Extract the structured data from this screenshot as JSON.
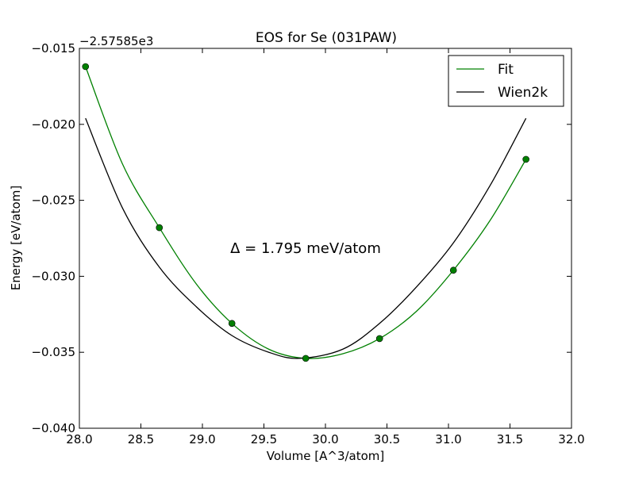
{
  "chart_data": {
    "type": "line",
    "title": "EOS for Se (031PAW)",
    "xlabel": "Volume [A^3/atom]",
    "ylabel": "Energy [eV/atom]",
    "y_offset_label": "−2.57585e3",
    "annotation": "Δ = 1.795 meV/atom",
    "xlim": [
      28.0,
      32.0
    ],
    "ylim": [
      -0.04,
      -0.015
    ],
    "x_ticks": [
      28.0,
      28.5,
      29.0,
      29.5,
      30.0,
      30.5,
      31.0,
      31.5,
      32.0
    ],
    "x_tick_labels": [
      "28.0",
      "28.5",
      "29.0",
      "29.5",
      "30.0",
      "30.5",
      "31.0",
      "31.5",
      "32.0"
    ],
    "y_ticks": [
      -0.04,
      -0.035,
      -0.03,
      -0.025,
      -0.02,
      -0.015
    ],
    "y_tick_labels": [
      "−0.040",
      "−0.035",
      "−0.030",
      "−0.025",
      "−0.020",
      "−0.015"
    ],
    "grid": false,
    "legend_position": "top-right",
    "series": [
      {
        "name": "Fit",
        "color": "#008000",
        "kind": "fit-curve",
        "x": [
          28.05,
          28.35,
          28.65,
          28.95,
          29.24,
          29.54,
          29.84,
          30.14,
          30.44,
          30.74,
          31.04,
          31.34,
          31.63
        ],
        "y": [
          -0.0162,
          -0.0226,
          -0.0268,
          -0.0305,
          -0.0331,
          -0.0348,
          -0.0354,
          -0.0351,
          -0.0341,
          -0.0323,
          -0.0296,
          -0.0263,
          -0.0223
        ]
      },
      {
        "name": "Wien2k",
        "color": "#000000",
        "kind": "reference-curve",
        "x": [
          28.05,
          28.35,
          28.65,
          28.95,
          29.24,
          29.54,
          29.79,
          30.14,
          30.44,
          30.74,
          31.04,
          31.34,
          31.63
        ],
        "y": [
          -0.0196,
          -0.0255,
          -0.0294,
          -0.032,
          -0.0339,
          -0.035,
          -0.0354,
          -0.0348,
          -0.0331,
          -0.0307,
          -0.0278,
          -0.024,
          -0.0196
        ]
      }
    ],
    "points": {
      "color": "#008000",
      "x": [
        28.05,
        28.65,
        29.24,
        29.84,
        30.44,
        31.04,
        31.63
      ],
      "y": [
        -0.0162,
        -0.0268,
        -0.0331,
        -0.0354,
        -0.0341,
        -0.0296,
        -0.0223
      ]
    }
  }
}
